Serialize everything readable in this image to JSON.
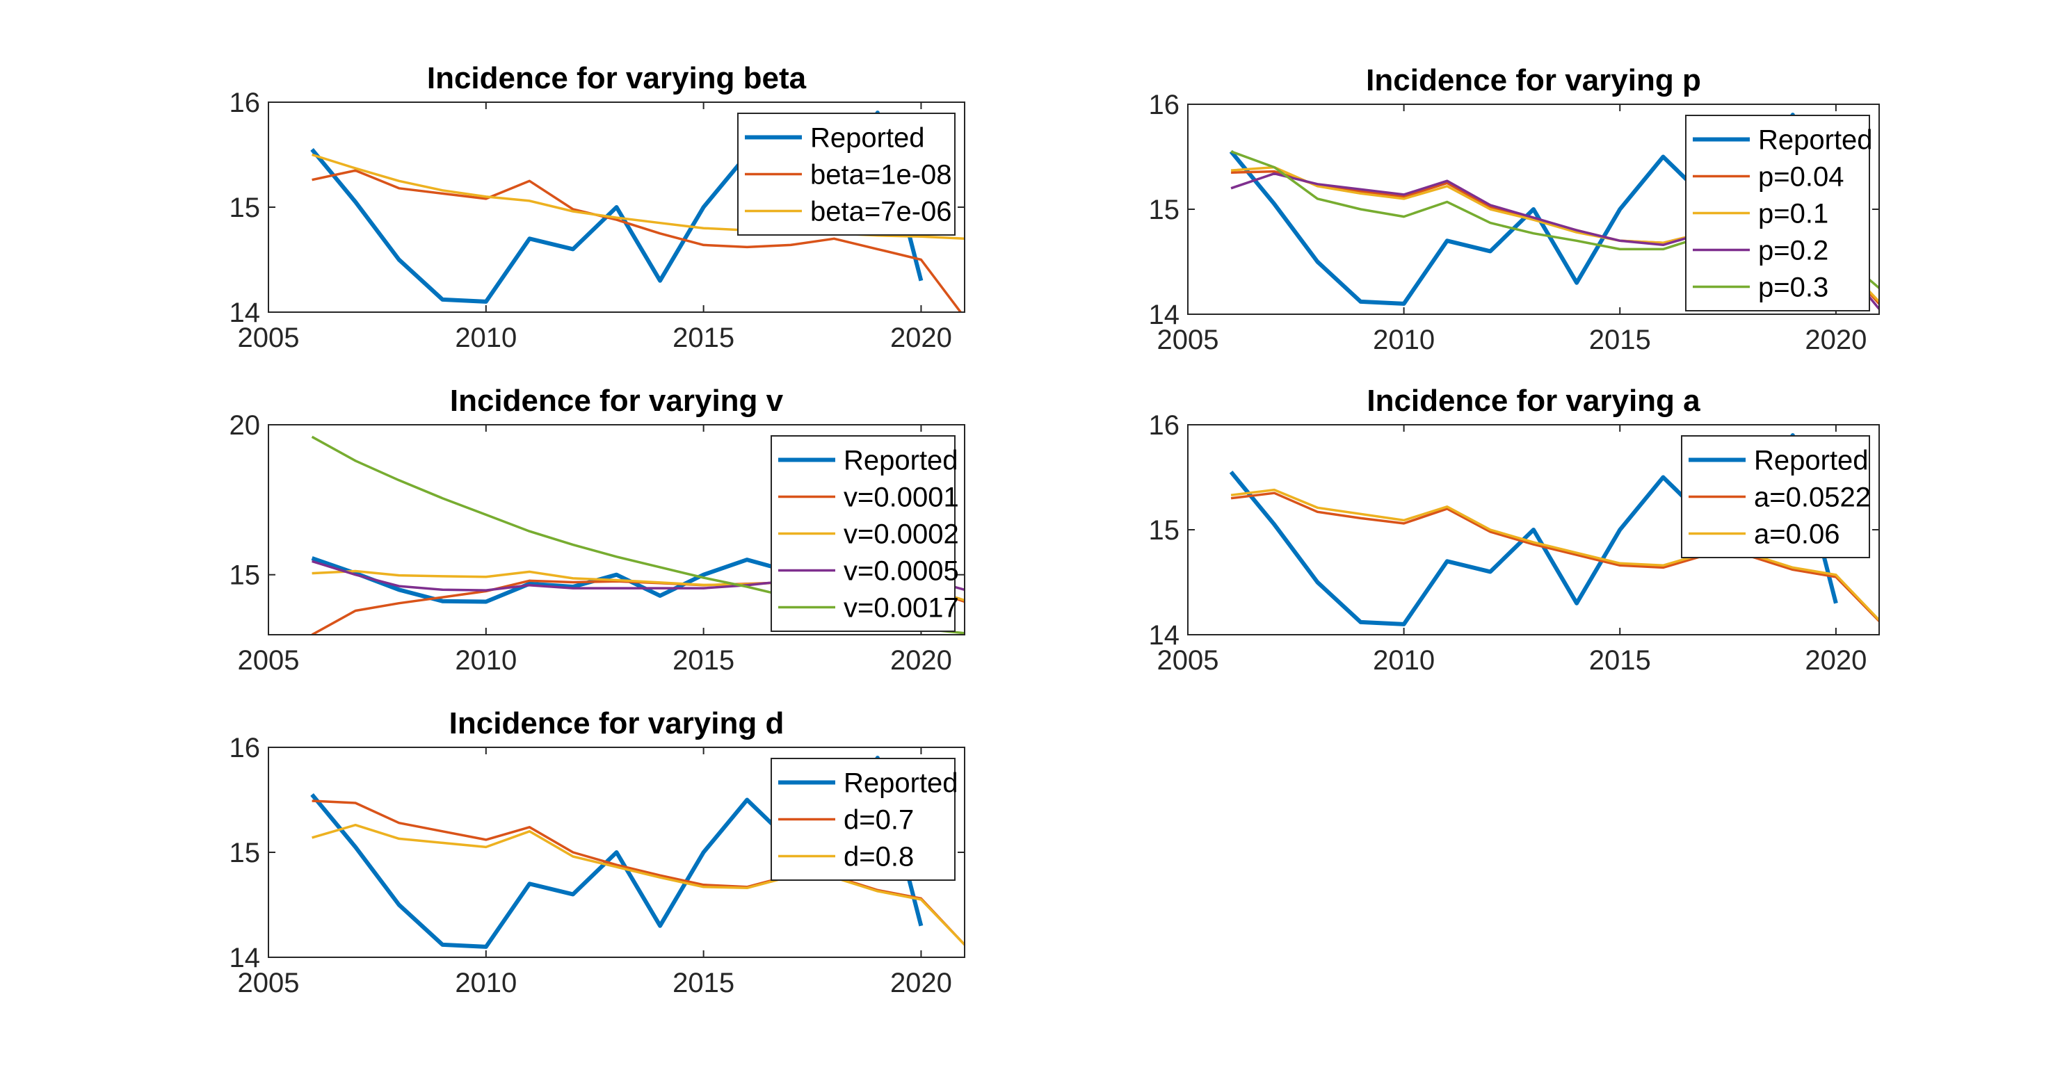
{
  "chart_data": [
    {
      "type": "line",
      "title": "Incidence for varying beta",
      "xlabel": "",
      "ylabel": "",
      "xlim": [
        2005,
        2021
      ],
      "ylim": [
        14,
        16
      ],
      "xticks": [
        2005,
        2010,
        2015,
        2020
      ],
      "yticks": [
        14,
        15,
        16
      ],
      "legend_position": "top-right",
      "series": [
        {
          "name": "Reported",
          "color": "#0072BD",
          "width": "thick",
          "x": [
            2006,
            2007,
            2008,
            2009,
            2010,
            2011,
            2012,
            2013,
            2014,
            2015,
            2016,
            2017,
            2018,
            2019,
            2020
          ],
          "y": [
            15.55,
            15.05,
            14.5,
            14.12,
            14.1,
            14.7,
            14.6,
            15.0,
            14.3,
            15.0,
            15.5,
            15.1,
            15.3,
            15.9,
            14.3
          ]
        },
        {
          "name": "beta=1e-08",
          "color": "#D95319",
          "width": "thin",
          "x": [
            2006,
            2007,
            2008,
            2009,
            2010,
            2011,
            2012,
            2013,
            2014,
            2015,
            2016,
            2017,
            2018,
            2019,
            2020,
            2021
          ],
          "y": [
            15.26,
            15.35,
            15.18,
            15.13,
            15.08,
            15.25,
            14.98,
            14.88,
            14.75,
            14.64,
            14.62,
            14.64,
            14.7,
            14.6,
            14.5,
            13.95
          ]
        },
        {
          "name": "beta=7e-06",
          "color": "#EDB120",
          "width": "thin",
          "x": [
            2006,
            2007,
            2008,
            2009,
            2010,
            2011,
            2012,
            2013,
            2014,
            2015,
            2016,
            2017,
            2018,
            2019,
            2020,
            2021
          ],
          "y": [
            15.5,
            15.37,
            15.25,
            15.16,
            15.1,
            15.06,
            14.96,
            14.9,
            14.85,
            14.8,
            14.78,
            14.76,
            14.75,
            14.73,
            14.72,
            14.7
          ]
        }
      ]
    },
    {
      "type": "line",
      "title": "Incidence for varying p",
      "xlabel": "",
      "ylabel": "",
      "xlim": [
        2005,
        2021
      ],
      "ylim": [
        14,
        16
      ],
      "xticks": [
        2005,
        2010,
        2015,
        2020
      ],
      "yticks": [
        14,
        15,
        16
      ],
      "legend_position": "top-right",
      "series": [
        {
          "name": "Reported",
          "color": "#0072BD",
          "width": "thick",
          "x": [
            2006,
            2007,
            2008,
            2009,
            2010,
            2011,
            2012,
            2013,
            2014,
            2015,
            2016,
            2017,
            2018,
            2019,
            2020
          ],
          "y": [
            15.55,
            15.05,
            14.5,
            14.12,
            14.1,
            14.7,
            14.6,
            15.0,
            14.3,
            15.0,
            15.5,
            15.1,
            15.3,
            15.9,
            14.3
          ]
        },
        {
          "name": "p=0.04",
          "color": "#D95319",
          "width": "thin",
          "x": [
            2006,
            2007,
            2008,
            2009,
            2010,
            2011,
            2012,
            2013,
            2014,
            2015,
            2016,
            2017,
            2018,
            2019,
            2020,
            2021
          ],
          "y": [
            15.35,
            15.36,
            15.23,
            15.17,
            15.12,
            15.25,
            15.02,
            14.9,
            14.8,
            14.7,
            14.68,
            14.78,
            14.75,
            14.62,
            14.55,
            14.1
          ]
        },
        {
          "name": "p=0.1",
          "color": "#EDB120",
          "width": "thin",
          "x": [
            2006,
            2007,
            2008,
            2009,
            2010,
            2011,
            2012,
            2013,
            2014,
            2015,
            2016,
            2017,
            2018,
            2019,
            2020,
            2021
          ],
          "y": [
            15.37,
            15.4,
            15.22,
            15.15,
            15.1,
            15.22,
            15.0,
            14.9,
            14.78,
            14.7,
            14.68,
            14.78,
            14.75,
            14.62,
            14.55,
            14.12
          ]
        },
        {
          "name": "p=0.2",
          "color": "#7E2F8E",
          "width": "thin",
          "x": [
            2006,
            2007,
            2008,
            2009,
            2010,
            2011,
            2012,
            2013,
            2014,
            2015,
            2016,
            2017,
            2018,
            2019,
            2020,
            2021
          ],
          "y": [
            15.2,
            15.34,
            15.24,
            15.19,
            15.14,
            15.27,
            15.04,
            14.92,
            14.8,
            14.7,
            14.66,
            14.78,
            14.75,
            14.62,
            14.55,
            14.05
          ]
        },
        {
          "name": "p=0.3",
          "color": "#77AC30",
          "width": "thin",
          "x": [
            2006,
            2007,
            2008,
            2009,
            2010,
            2011,
            2012,
            2013,
            2014,
            2015,
            2016,
            2017,
            2018,
            2019,
            2020,
            2021
          ],
          "y": [
            15.55,
            15.4,
            15.1,
            15.0,
            14.93,
            15.07,
            14.87,
            14.77,
            14.7,
            14.62,
            14.62,
            14.75,
            14.76,
            14.66,
            14.6,
            14.25
          ]
        }
      ]
    },
    {
      "type": "line",
      "title": "Incidence for varying v",
      "xlabel": "",
      "ylabel": "",
      "xlim": [
        2005,
        2021
      ],
      "ylim": [
        13,
        20
      ],
      "xticks": [
        2005,
        2010,
        2015,
        2020
      ],
      "yticks": [
        15,
        20
      ],
      "legend_position": "top-right",
      "series": [
        {
          "name": "Reported",
          "color": "#0072BD",
          "width": "thick",
          "x": [
            2006,
            2007,
            2008,
            2009,
            2010,
            2011,
            2012,
            2013,
            2014,
            2015,
            2016,
            2017,
            2018,
            2019,
            2020
          ],
          "y": [
            15.55,
            15.05,
            14.5,
            14.12,
            14.1,
            14.7,
            14.6,
            15.0,
            14.3,
            15.0,
            15.5,
            15.1,
            15.3,
            15.9,
            14.3
          ]
        },
        {
          "name": "v=0.0001",
          "color": "#D95319",
          "width": "thin",
          "x": [
            2006,
            2007,
            2008,
            2009,
            2010,
            2011,
            2012,
            2013,
            2014,
            2015,
            2016,
            2017,
            2018,
            2019,
            2020,
            2021
          ],
          "y": [
            13.0,
            13.8,
            14.05,
            14.25,
            14.45,
            14.8,
            14.75,
            14.78,
            14.72,
            14.65,
            14.7,
            14.75,
            14.75,
            14.7,
            14.6,
            14.1
          ]
        },
        {
          "name": "v=0.0002",
          "color": "#EDB120",
          "width": "thin",
          "x": [
            2006,
            2007,
            2008,
            2009,
            2010,
            2011,
            2012,
            2013,
            2014,
            2015,
            2016,
            2017,
            2018,
            2019,
            2020,
            2021
          ],
          "y": [
            15.05,
            15.12,
            14.98,
            14.95,
            14.93,
            15.1,
            14.88,
            14.82,
            14.74,
            14.66,
            14.68,
            14.76,
            14.75,
            14.68,
            14.6,
            14.15
          ]
        },
        {
          "name": "v=0.0005",
          "color": "#7E2F8E",
          "width": "thin",
          "x": [
            2006,
            2007,
            2008,
            2009,
            2010,
            2011,
            2012,
            2013,
            2014,
            2015,
            2016,
            2017,
            2018,
            2019,
            2020,
            2021
          ],
          "y": [
            15.45,
            15.0,
            14.62,
            14.5,
            14.48,
            14.65,
            14.55,
            14.55,
            14.55,
            14.55,
            14.65,
            14.8,
            14.85,
            14.85,
            14.9,
            14.5
          ]
        },
        {
          "name": "v=0.0017",
          "color": "#77AC30",
          "width": "thin",
          "x": [
            2006,
            2007,
            2008,
            2009,
            2010,
            2011,
            2012,
            2013,
            2014,
            2015,
            2016,
            2017,
            2018,
            2019,
            2020,
            2021
          ],
          "y": [
            19.6,
            18.8,
            18.15,
            17.55,
            17.0,
            16.45,
            16.0,
            15.6,
            15.25,
            14.9,
            14.6,
            14.25,
            13.9,
            13.55,
            13.2,
            13.05
          ]
        }
      ]
    },
    {
      "type": "line",
      "title": "Incidence for varying a",
      "xlabel": "",
      "ylabel": "",
      "xlim": [
        2005,
        2021
      ],
      "ylim": [
        14,
        16
      ],
      "xticks": [
        2005,
        2010,
        2015,
        2020
      ],
      "yticks": [
        14,
        15,
        16
      ],
      "legend_position": "top-right",
      "series": [
        {
          "name": "Reported",
          "color": "#0072BD",
          "width": "thick",
          "x": [
            2006,
            2007,
            2008,
            2009,
            2010,
            2011,
            2012,
            2013,
            2014,
            2015,
            2016,
            2017,
            2018,
            2019,
            2020
          ],
          "y": [
            15.55,
            15.05,
            14.5,
            14.12,
            14.1,
            14.7,
            14.6,
            15.0,
            14.3,
            15.0,
            15.5,
            15.1,
            15.3,
            15.9,
            14.3
          ]
        },
        {
          "name": "a=0.0522",
          "color": "#D95319",
          "width": "thin",
          "x": [
            2006,
            2007,
            2008,
            2009,
            2010,
            2011,
            2012,
            2013,
            2014,
            2015,
            2016,
            2017,
            2018,
            2019,
            2020,
            2021
          ],
          "y": [
            15.3,
            15.35,
            15.17,
            15.11,
            15.06,
            15.2,
            14.98,
            14.86,
            14.76,
            14.66,
            14.64,
            14.76,
            14.75,
            14.62,
            14.55,
            14.13
          ]
        },
        {
          "name": "a=0.06",
          "color": "#EDB120",
          "width": "thin",
          "x": [
            2006,
            2007,
            2008,
            2009,
            2010,
            2011,
            2012,
            2013,
            2014,
            2015,
            2016,
            2017,
            2018,
            2019,
            2020,
            2021
          ],
          "y": [
            15.33,
            15.38,
            15.21,
            15.15,
            15.09,
            15.22,
            15.0,
            14.88,
            14.78,
            14.68,
            14.66,
            14.78,
            14.77,
            14.64,
            14.57,
            14.14
          ]
        }
      ]
    },
    {
      "type": "line",
      "title": "Incidence for varying d",
      "xlabel": "",
      "ylabel": "",
      "xlim": [
        2005,
        2021
      ],
      "ylim": [
        14,
        16
      ],
      "xticks": [
        2005,
        2010,
        2015,
        2020
      ],
      "yticks": [
        14,
        15,
        16
      ],
      "legend_position": "top-right",
      "series": [
        {
          "name": "Reported",
          "color": "#0072BD",
          "width": "thick",
          "x": [
            2006,
            2007,
            2008,
            2009,
            2010,
            2011,
            2012,
            2013,
            2014,
            2015,
            2016,
            2017,
            2018,
            2019,
            2020
          ],
          "y": [
            15.55,
            15.05,
            14.5,
            14.12,
            14.1,
            14.7,
            14.6,
            15.0,
            14.3,
            15.0,
            15.5,
            15.1,
            15.3,
            15.9,
            14.3
          ]
        },
        {
          "name": "d=0.7",
          "color": "#D95319",
          "width": "thin",
          "x": [
            2006,
            2007,
            2008,
            2009,
            2010,
            2011,
            2012,
            2013,
            2014,
            2015,
            2016,
            2017,
            2018,
            2019,
            2020,
            2021
          ],
          "y": [
            15.49,
            15.47,
            15.28,
            15.2,
            15.12,
            15.24,
            15.0,
            14.88,
            14.78,
            14.69,
            14.67,
            14.78,
            14.77,
            14.64,
            14.56,
            14.12
          ]
        },
        {
          "name": "d=0.8",
          "color": "#EDB120",
          "width": "thin",
          "x": [
            2006,
            2007,
            2008,
            2009,
            2010,
            2011,
            2012,
            2013,
            2014,
            2015,
            2016,
            2017,
            2018,
            2019,
            2020,
            2021
          ],
          "y": [
            15.14,
            15.26,
            15.13,
            15.09,
            15.05,
            15.2,
            14.96,
            14.86,
            14.76,
            14.67,
            14.66,
            14.77,
            14.76,
            14.63,
            14.55,
            14.12
          ]
        }
      ]
    }
  ]
}
